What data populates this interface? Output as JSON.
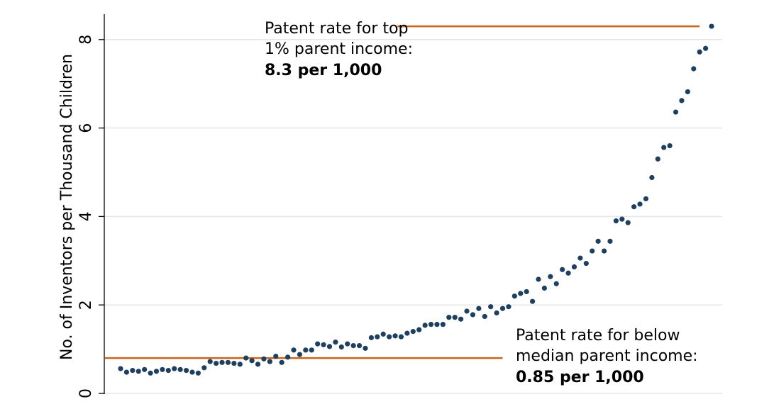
{
  "chart_data": {
    "type": "scatter",
    "title": "",
    "xlabel": "",
    "ylabel": "No. of Inventors per Thousand Children",
    "xlim": [
      1,
      100
    ],
    "ylim": [
      0,
      8.4
    ],
    "yticks": [
      0,
      2,
      4,
      6,
      8
    ],
    "ytick_labels": [
      "0",
      "2",
      "4",
      "6",
      "8"
    ],
    "grid": "horizontal",
    "series": [
      {
        "x": [
          1,
          2,
          3,
          4,
          5,
          6,
          7,
          8,
          9,
          10,
          11,
          12,
          13,
          14,
          15,
          16,
          17,
          18,
          19,
          20,
          21,
          22,
          23,
          24,
          25,
          26,
          27,
          28,
          29,
          30,
          31,
          32,
          33,
          34,
          35,
          36,
          37,
          38,
          39,
          40,
          41,
          42,
          43,
          44,
          45,
          46,
          47,
          48,
          49,
          50,
          51,
          52,
          53,
          54,
          55,
          56,
          57,
          58,
          59,
          60,
          61,
          62,
          63,
          64,
          65,
          66,
          67,
          68,
          69,
          70,
          71,
          72,
          73,
          74,
          75,
          76,
          77,
          78,
          79,
          80,
          81,
          82,
          83,
          84,
          85,
          86,
          87,
          88,
          89,
          90,
          91,
          92,
          93,
          94,
          95,
          96,
          97,
          98,
          99,
          100
        ],
        "y": [
          0.56,
          0.48,
          0.52,
          0.5,
          0.54,
          0.46,
          0.5,
          0.54,
          0.52,
          0.56,
          0.54,
          0.52,
          0.48,
          0.46,
          0.58,
          0.72,
          0.68,
          0.7,
          0.7,
          0.68,
          0.66,
          0.8,
          0.74,
          0.66,
          0.78,
          0.72,
          0.84,
          0.7,
          0.82,
          0.98,
          0.88,
          0.98,
          0.98,
          1.12,
          1.1,
          1.06,
          1.16,
          1.05,
          1.12,
          1.08,
          1.08,
          1.02,
          1.26,
          1.28,
          1.34,
          1.28,
          1.3,
          1.28,
          1.36,
          1.4,
          1.44,
          1.54,
          1.56,
          1.56,
          1.56,
          1.72,
          1.72,
          1.68,
          1.86,
          1.78,
          1.92,
          1.74,
          1.96,
          1.82,
          1.92,
          1.96,
          2.2,
          2.26,
          2.3,
          2.08,
          2.58,
          2.38,
          2.64,
          2.48,
          2.8,
          2.72,
          2.86,
          3.06,
          2.94,
          3.22,
          3.44,
          3.22,
          3.44,
          3.9,
          3.94,
          3.86,
          4.22,
          4.28,
          4.4,
          4.88,
          5.3,
          5.56,
          5.6,
          6.36,
          6.62,
          6.82,
          7.34,
          7.72,
          7.8,
          8.3
        ]
      }
    ],
    "reference_lines": [
      {
        "y": 8.3,
        "x_range": [
          50,
          98
        ],
        "color": "#c8641e"
      },
      {
        "y": 0.8,
        "x_range": [
          1,
          65
        ],
        "color": "#c8641e"
      }
    ],
    "annotations": [
      {
        "lines": [
          "Patent rate for top",
          "1% parent income:"
        ],
        "value": "8.3 per 1,000"
      },
      {
        "lines": [
          "Patent rate for below",
          "median parent income:"
        ],
        "value": "0.85 per 1,000"
      }
    ]
  },
  "colors": {
    "points": "#1f3f5f",
    "reference_line": "#c8641e",
    "grid": "#e6e6e6",
    "axis": "#000000"
  }
}
